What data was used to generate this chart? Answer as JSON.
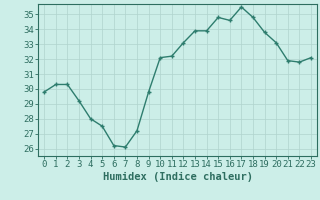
{
  "x": [
    0,
    1,
    2,
    3,
    4,
    5,
    6,
    7,
    8,
    9,
    10,
    11,
    12,
    13,
    14,
    15,
    16,
    17,
    18,
    19,
    20,
    21,
    22,
    23
  ],
  "y": [
    29.8,
    30.3,
    30.3,
    29.2,
    28.0,
    27.5,
    26.2,
    26.1,
    27.2,
    29.8,
    32.1,
    32.2,
    33.1,
    33.9,
    33.9,
    34.8,
    34.6,
    35.5,
    34.8,
    33.8,
    33.1,
    31.9,
    31.8,
    32.1
  ],
  "line_color": "#2e7d6e",
  "marker": "+",
  "bg_color": "#cceee8",
  "grid_color": "#b0d4ce",
  "xlabel": "Humidex (Indice chaleur)",
  "xlim": [
    -0.5,
    23.5
  ],
  "ylim": [
    25.5,
    35.7
  ],
  "yticks": [
    26,
    27,
    28,
    29,
    30,
    31,
    32,
    33,
    34,
    35
  ],
  "xticks": [
    0,
    1,
    2,
    3,
    4,
    5,
    6,
    7,
    8,
    9,
    10,
    11,
    12,
    13,
    14,
    15,
    16,
    17,
    18,
    19,
    20,
    21,
    22,
    23
  ],
  "xlabel_fontsize": 7.5,
  "tick_fontsize": 6.5,
  "tick_color": "#2e6e60",
  "axis_color": "#2e6e60",
  "line_width": 1.0,
  "marker_size": 3,
  "marker_edge_width": 1.0
}
